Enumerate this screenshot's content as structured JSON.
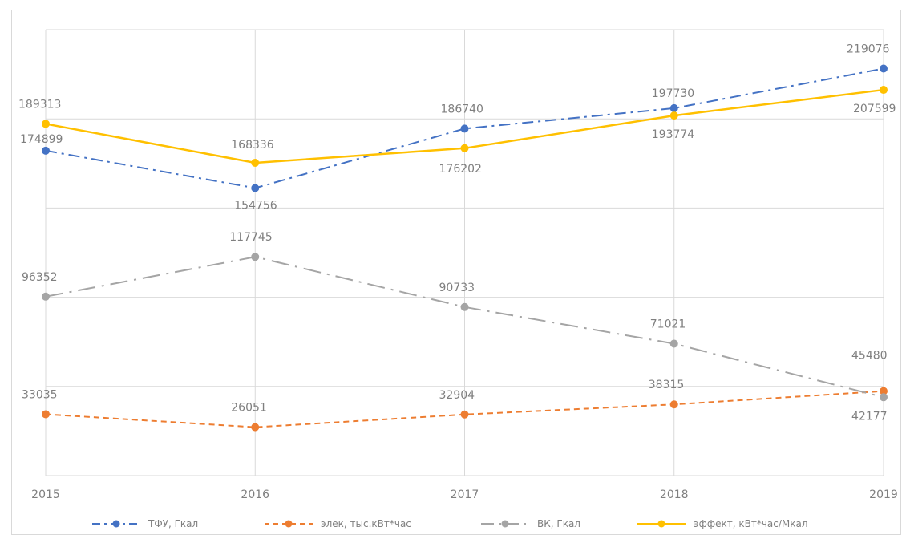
{
  "chart_data": {
    "type": "line",
    "x": [
      "2015",
      "2016",
      "2017",
      "2018",
      "2019"
    ],
    "ylim": [
      0,
      240000
    ],
    "grid": true,
    "legend_position": "bottom",
    "series": [
      {
        "name": "ТФУ, Гкал",
        "color": "#4472c4",
        "dash": "dashdot",
        "values": [
          174899,
          154756,
          186740,
          197730,
          219076
        ],
        "labels": [
          "174899",
          "154756",
          "186740",
          "197730",
          "219076"
        ]
      },
      {
        "name": "элек, тыс.кВт*час",
        "color": "#ed7d31",
        "dash": "dash",
        "values": [
          33035,
          26051,
          32904,
          38315,
          45480
        ],
        "labels": [
          "33035",
          "26051",
          "32904",
          "38315",
          "45480"
        ]
      },
      {
        "name": "ВК, Гкал",
        "color": "#a5a5a5",
        "dash": "longdashdot",
        "values": [
          96352,
          117745,
          90733,
          71021,
          42177
        ],
        "labels": [
          "96352",
          "117745",
          "90733",
          "71021",
          "42177"
        ]
      },
      {
        "name": "эффект, кВт*час/Мкал",
        "color": "#ffc000",
        "dash": "solid",
        "values": [
          189313,
          168336,
          176202,
          193774,
          207599
        ],
        "labels": [
          "189313",
          "168336",
          "176202",
          "193774",
          "207599"
        ]
      }
    ]
  }
}
